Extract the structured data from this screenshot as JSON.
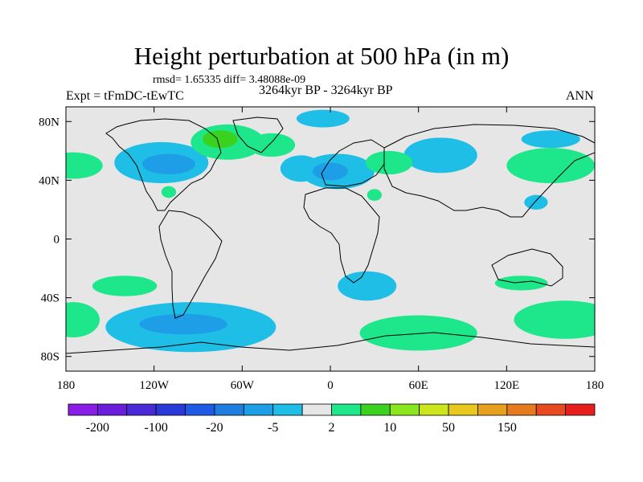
{
  "header": {
    "title": "Height perturbation at 500 hPa (in m)",
    "stats": "rmsd= 1.65335 diff= 3.48088e-09",
    "experiment": "Expt = tFmDC-tEwTC",
    "period": "3264kyr BP - 3264kyr BP",
    "season": "ANN"
  },
  "axes": {
    "lat_labels": [
      {
        "label": "80N",
        "lat": 80
      },
      {
        "label": "40N",
        "lat": 40
      },
      {
        "label": "0",
        "lat": 0
      },
      {
        "label": "40S",
        "lat": -40
      },
      {
        "label": "80S",
        "lat": -80
      }
    ],
    "lon_labels": [
      {
        "label": "180",
        "lon": -180
      },
      {
        "label": "120W",
        "lon": -120
      },
      {
        "label": "60W",
        "lon": -60
      },
      {
        "label": "0",
        "lon": 0
      },
      {
        "label": "60E",
        "lon": 60
      },
      {
        "label": "120E",
        "lon": 120
      },
      {
        "label": "180",
        "lon": 180
      }
    ]
  },
  "chart_data": {
    "type": "heatmap",
    "title": "Height perturbation at 500 hPa (in m)",
    "background_color": "#e6e6e6",
    "xlim": [
      -180,
      180
    ],
    "ylim": [
      -90,
      90
    ],
    "colorbar": {
      "colors": [
        "#8a1ee6",
        "#6a1edc",
        "#4a2ad6",
        "#2a3ad8",
        "#1e5ae6",
        "#1e7ee0",
        "#1e9ee6",
        "#1ebee6",
        "#e6e6e6",
        "#1ee68a",
        "#3ad21e",
        "#8ae61e",
        "#cce61e",
        "#e6c81e",
        "#e6a01e",
        "#e67a1e",
        "#e64a1e",
        "#e61e1e"
      ],
      "labels": [
        "-200",
        "-100",
        "-20",
        "-5",
        "2",
        "10",
        "50",
        "150"
      ]
    },
    "regions": [
      {
        "name": "n-america-low",
        "lon": -115,
        "lat": 52,
        "rx": 32,
        "ry": 14,
        "color": "#1ebee6"
      },
      {
        "name": "n-america-low-core",
        "lon": -110,
        "lat": 51,
        "rx": 18,
        "ry": 7,
        "color": "#1e9ee6"
      },
      {
        "name": "pacific-high-west",
        "lon": -175,
        "lat": 50,
        "rx": 20,
        "ry": 9,
        "color": "#1ee68a"
      },
      {
        "name": "canada-high",
        "lon": -70,
        "lat": 66,
        "rx": 25,
        "ry": 12,
        "color": "#1ee68a"
      },
      {
        "name": "canada-high-core",
        "lon": -75,
        "lat": 68,
        "rx": 12,
        "ry": 6,
        "color": "#3ad21e"
      },
      {
        "name": "greenland-high",
        "lon": -40,
        "lat": 64,
        "rx": 16,
        "ry": 8,
        "color": "#1ee68a"
      },
      {
        "name": "atlantic-low",
        "lon": -20,
        "lat": 48,
        "rx": 14,
        "ry": 9,
        "color": "#1ebee6"
      },
      {
        "name": "europe-low",
        "lon": 5,
        "lat": 46,
        "rx": 25,
        "ry": 12,
        "color": "#1ebee6"
      },
      {
        "name": "europe-low-core",
        "lon": 0,
        "lat": 46,
        "rx": 12,
        "ry": 6,
        "color": "#1e9ee6"
      },
      {
        "name": "arctic-low",
        "lon": -5,
        "lat": 82,
        "rx": 18,
        "ry": 6,
        "color": "#1ebee6"
      },
      {
        "name": "asia-low",
        "lon": 75,
        "lat": 57,
        "rx": 25,
        "ry": 12,
        "color": "#1ebee6"
      },
      {
        "name": "asia-high",
        "lon": 40,
        "lat": 52,
        "rx": 16,
        "ry": 8,
        "color": "#1ee68a"
      },
      {
        "name": "pacific-high-east",
        "lon": 150,
        "lat": 50,
        "rx": 30,
        "ry": 12,
        "color": "#1ee68a"
      },
      {
        "name": "siberia-low",
        "lon": 150,
        "lat": 68,
        "rx": 20,
        "ry": 6,
        "color": "#1ebee6"
      },
      {
        "name": "japan-low",
        "lon": 140,
        "lat": 25,
        "rx": 8,
        "ry": 5,
        "color": "#1ebee6"
      },
      {
        "name": "arabia-high",
        "lon": 30,
        "lat": 30,
        "rx": 5,
        "ry": 4,
        "color": "#1ee68a"
      },
      {
        "name": "caribbean-high",
        "lon": -110,
        "lat": 32,
        "rx": 5,
        "ry": 4,
        "color": "#1ee68a"
      },
      {
        "name": "s-pacific-high",
        "lon": -140,
        "lat": -32,
        "rx": 22,
        "ry": 7,
        "color": "#1ee68a"
      },
      {
        "name": "s-africa-low",
        "lon": 25,
        "lat": -32,
        "rx": 20,
        "ry": 10,
        "color": "#1ebee6"
      },
      {
        "name": "australia-high",
        "lon": 130,
        "lat": -30,
        "rx": 18,
        "ry": 5,
        "color": "#1ee68a"
      },
      {
        "name": "southern-low",
        "lon": -95,
        "lat": -60,
        "rx": 58,
        "ry": 17,
        "color": "#1ebee6"
      },
      {
        "name": "southern-low-core",
        "lon": -100,
        "lat": -58,
        "rx": 30,
        "ry": 7,
        "color": "#1e9ee6"
      },
      {
        "name": "s-ocean-high-west",
        "lon": -175,
        "lat": -55,
        "rx": 18,
        "ry": 12,
        "color": "#1ee68a"
      },
      {
        "name": "s-ocean-high-mid",
        "lon": 60,
        "lat": -64,
        "rx": 40,
        "ry": 12,
        "color": "#1ee68a"
      },
      {
        "name": "s-ocean-high-east",
        "lon": 160,
        "lat": -55,
        "rx": 35,
        "ry": 13,
        "color": "#1ee68a"
      }
    ]
  }
}
